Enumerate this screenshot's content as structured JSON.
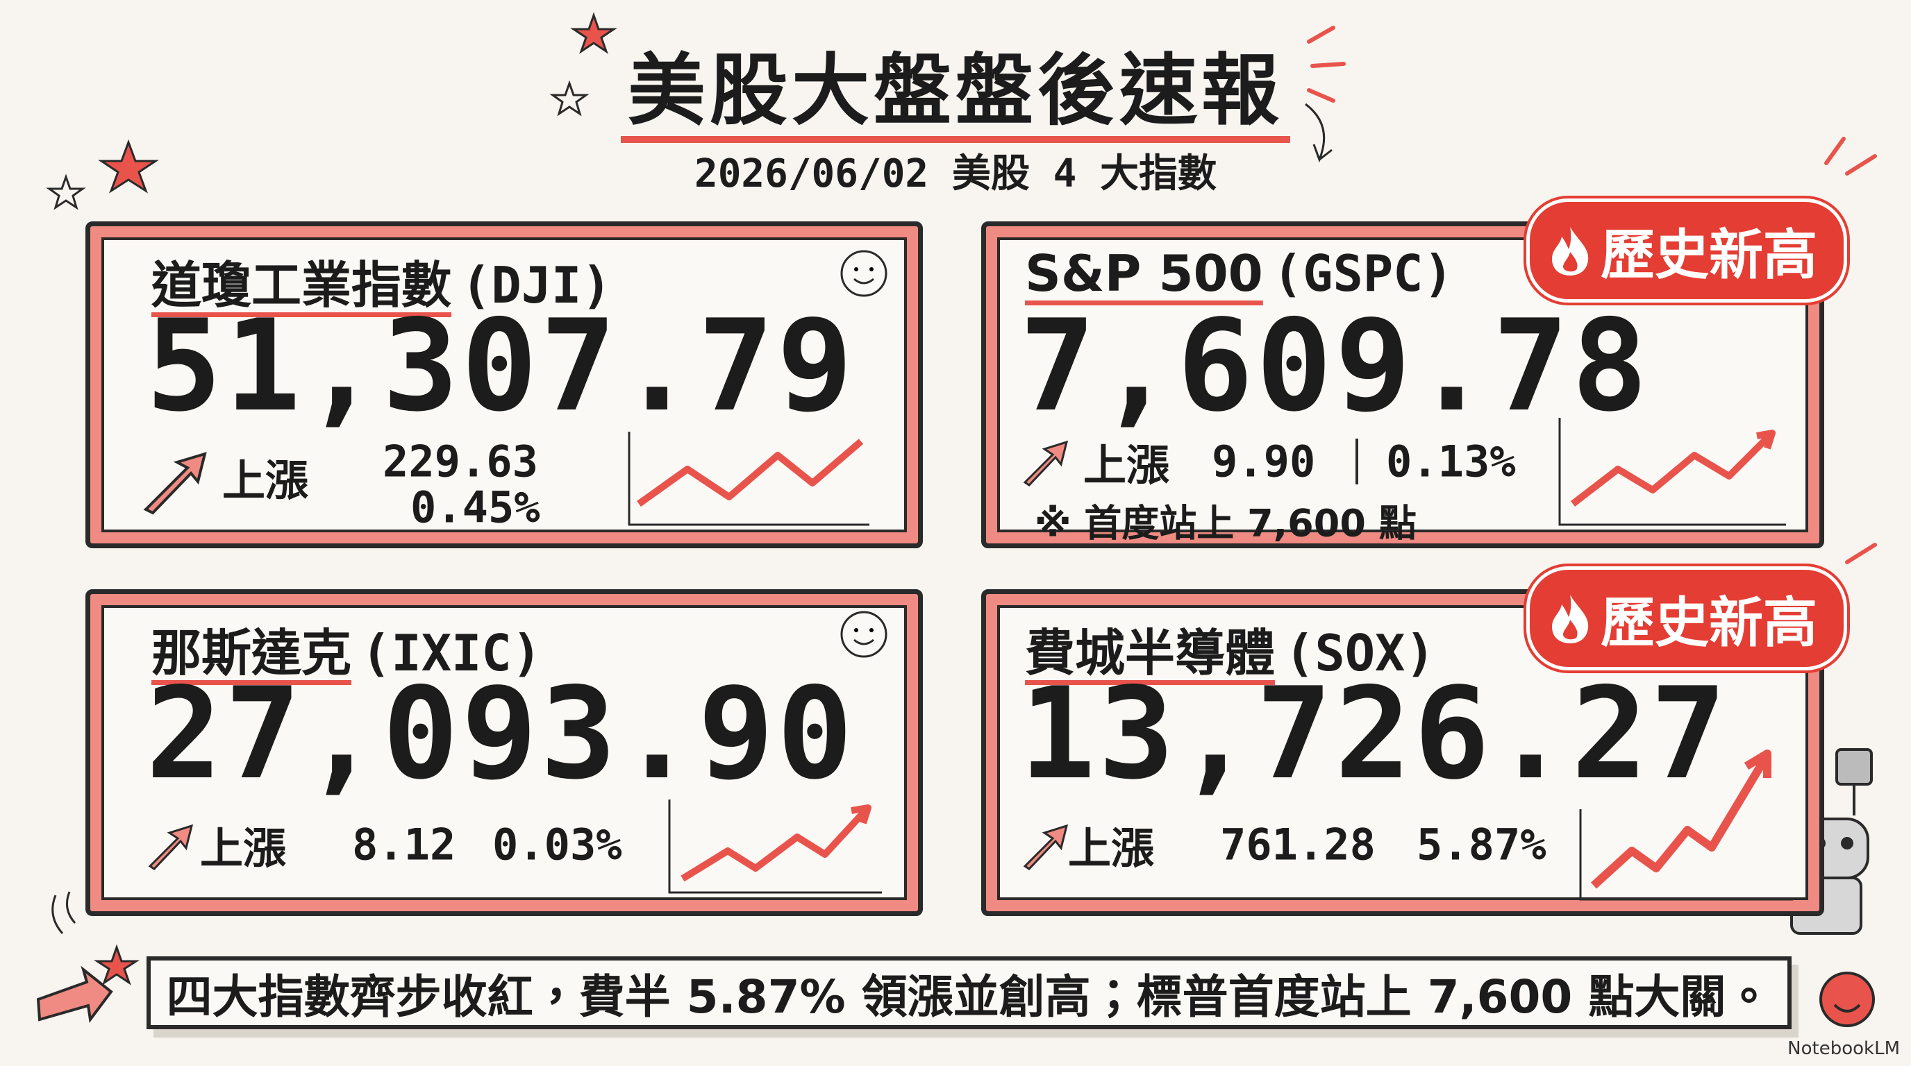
{
  "header": {
    "title": "美股大盤盤後速報",
    "subtitle": "2026/06/02 美股 4 大指數"
  },
  "cards": [
    {
      "name": "道瓊工業指數",
      "code": "(DJI)",
      "value": "51,307.79",
      "direction": "上漲",
      "change": "229.63",
      "percent": "0.45%"
    },
    {
      "name": "S&P 500",
      "code": "(GSPC)",
      "value": "7,609.78",
      "direction": "上漲",
      "change": "9.90",
      "percent": "0.13%",
      "note": "※ 首度站上 7,600 點",
      "badge": "歷史新高"
    },
    {
      "name": "那斯達克",
      "code": "(IXIC)",
      "value": "27,093.90",
      "direction": "上漲",
      "change": "8.12",
      "percent": "0.03%"
    },
    {
      "name": "費城半導體",
      "code": "(SOX)",
      "value": "13,726.27",
      "direction": "上漲",
      "change": "761.28",
      "percent": "5.87%",
      "badge": "歷史新高"
    }
  ],
  "footer": {
    "summary": "四大指數齊步收紅，費半 5.87% 領漲並創高；標普首度站上 7,600 點大關。"
  },
  "brand": "NotebookLM"
}
